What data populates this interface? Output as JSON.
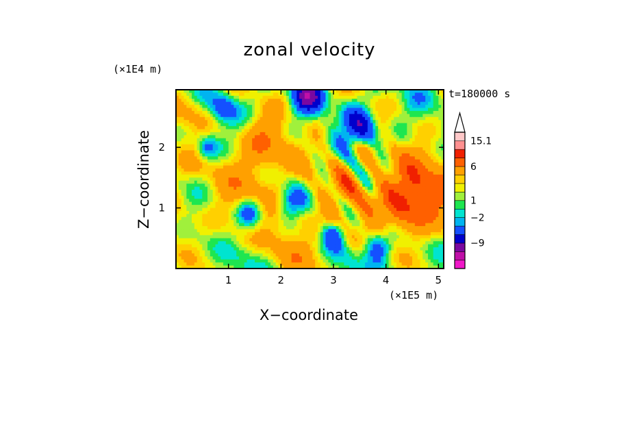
{
  "chart_data": {
    "type": "heatmap",
    "title": "zonal velocity",
    "xlabel": "X−coordinate",
    "ylabel": "Z−coordinate",
    "x_unit": "(×1E5 m)",
    "y_unit": "(×1E4 m)",
    "time_label": "t=180000 s",
    "xlim": [
      0,
      5.1
    ],
    "ylim": [
      0,
      2.95
    ],
    "x_ticks": [
      1,
      2,
      3,
      4,
      5
    ],
    "y_ticks": [
      1,
      2
    ],
    "colorbar": {
      "levels": [
        -15,
        -12,
        -9,
        -6,
        -3,
        -2,
        -1,
        0,
        1,
        2,
        3,
        6,
        9,
        12,
        15.1
      ],
      "tick_labels": [
        {
          "value": 15.1,
          "label": "15.1"
        },
        {
          "value": 6,
          "label": "6"
        },
        {
          "value": 1,
          "label": "1"
        },
        {
          "value": -2,
          "label": "−2"
        },
        {
          "value": -9,
          "label": "−9"
        }
      ],
      "colors": [
        "#f018c8",
        "#c010a8",
        "#7a08a0",
        "#0000cc",
        "#1450ff",
        "#00b4f0",
        "#00e4d0",
        "#1ee650",
        "#a0f03c",
        "#f0f000",
        "#ffd000",
        "#ffa000",
        "#ff6000",
        "#f02000",
        "#ff9090",
        "#ffc8c8"
      ],
      "extend_max": true
    }
  }
}
